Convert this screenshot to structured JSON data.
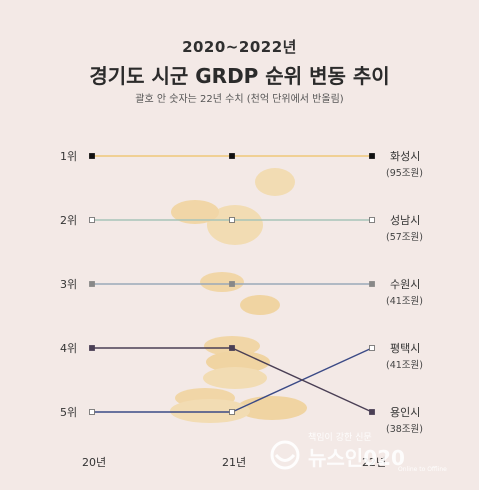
{
  "header": {
    "subtitle": "2020~2022년",
    "title": "경기도 시군 GRDP 순위 변동 추이",
    "note": "괄호 안 숫자는 22년 수치 (천억 단위에서 반올림)"
  },
  "chart_data": {
    "type": "line",
    "title": "경기도 시군 GRDP 순위 변동 추이",
    "x": [
      "20년",
      "21년",
      "22년"
    ],
    "y_ticks": [
      "1위",
      "2위",
      "3위",
      "4위",
      "5위"
    ],
    "ylim": [
      1,
      5
    ],
    "y_inverted": true,
    "grid": false,
    "series": [
      {
        "name": "화성시",
        "value_2022": "(95조원)",
        "ranks": [
          1,
          1,
          1
        ],
        "color": "#f0c878",
        "marker": "#111111"
      },
      {
        "name": "성남시",
        "value_2022": "(57조원)",
        "ranks": [
          2,
          2,
          2
        ],
        "color": "#a8c4b8",
        "marker": "#ffffff"
      },
      {
        "name": "수원시",
        "value_2022": "(41조원)",
        "ranks": [
          3,
          3,
          3
        ],
        "color": "#9aa9b8",
        "marker": "#888888"
      },
      {
        "name": "평택시",
        "value_2022": "(41조원)",
        "ranks": [
          5,
          5,
          4
        ],
        "color": "#3b4a86",
        "marker": "#ffffff"
      },
      {
        "name": "용인시",
        "value_2022": "(38조원)",
        "ranks": [
          4,
          4,
          5
        ],
        "color": "#4a3f55",
        "marker": "#4a3f55"
      }
    ]
  },
  "watermark": {
    "tagline": "책임이 강한 신문",
    "brand": "뉴스인020",
    "sub": "Online to Offline"
  },
  "colors": {
    "background": "#f3e9e6",
    "coin": "#f2d28a"
  }
}
